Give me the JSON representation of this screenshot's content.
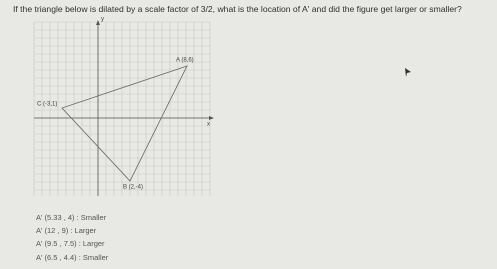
{
  "question": "If the triangle below is dilated by a scale factor of 3/2, what is the location of A' and did the figure get larger or smaller?",
  "graph": {
    "y_axis_label": "y",
    "x_axis_label": "x",
    "points": [
      {
        "label": "A (8,6)"
      },
      {
        "label": "C (-3,1)"
      },
      {
        "label": "B (2,-4)"
      }
    ]
  },
  "options": [
    "A' (5.33 , 4) : Smaller",
    "A' (12 , 9) : Larger",
    "A' (9.5 , 7.5) : Larger",
    "A' (6.5 , 4.4) : Smaller"
  ]
}
